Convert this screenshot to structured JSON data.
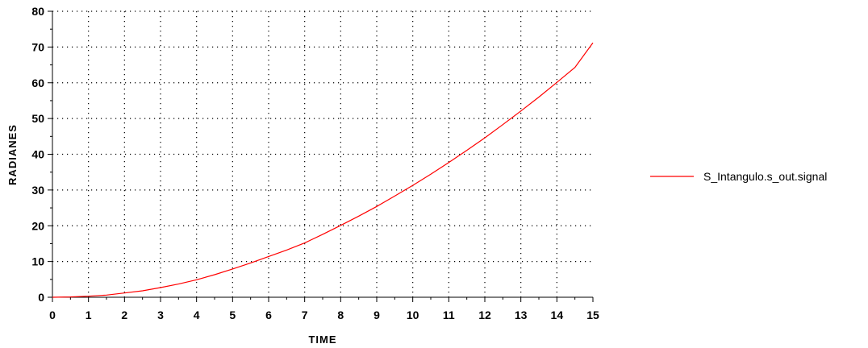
{
  "chart_data": {
    "type": "line",
    "xlabel": "TIME",
    "ylabel": "RADIANES",
    "xlim": [
      0,
      15
    ],
    "ylim": [
      0,
      80
    ],
    "x_ticks": [
      "0",
      "1",
      "2",
      "3",
      "4",
      "5",
      "6",
      "7",
      "8",
      "9",
      "10",
      "11",
      "12",
      "13",
      "14",
      "15"
    ],
    "y_ticks": [
      "0",
      "10",
      "20",
      "30",
      "40",
      "50",
      "60",
      "70",
      "80"
    ],
    "grid": true,
    "legend_position": "right",
    "series": [
      {
        "name": "S_Intangulo.s_out.signal",
        "color": "#ff0000",
        "x": [
          0,
          0.5,
          1,
          1.5,
          2,
          2.5,
          3,
          3.5,
          4,
          4.5,
          5,
          5.5,
          6,
          6.5,
          7,
          7.5,
          8,
          8.5,
          9,
          9.5,
          10,
          10.5,
          11,
          11.5,
          12,
          12.5,
          13,
          13.5,
          14,
          14.5,
          15
        ],
        "y": [
          0,
          0.1,
          0.3,
          0.6,
          1.2,
          1.8,
          2.7,
          3.7,
          4.9,
          6.3,
          7.9,
          9.6,
          11.4,
          13.2,
          15.2,
          17.6,
          20.1,
          22.7,
          25.4,
          28.3,
          31.3,
          34.4,
          37.7,
          41.1,
          44.6,
          48.3,
          52.1,
          56.0,
          60.1,
          64.3,
          71.2
        ]
      }
    ]
  }
}
